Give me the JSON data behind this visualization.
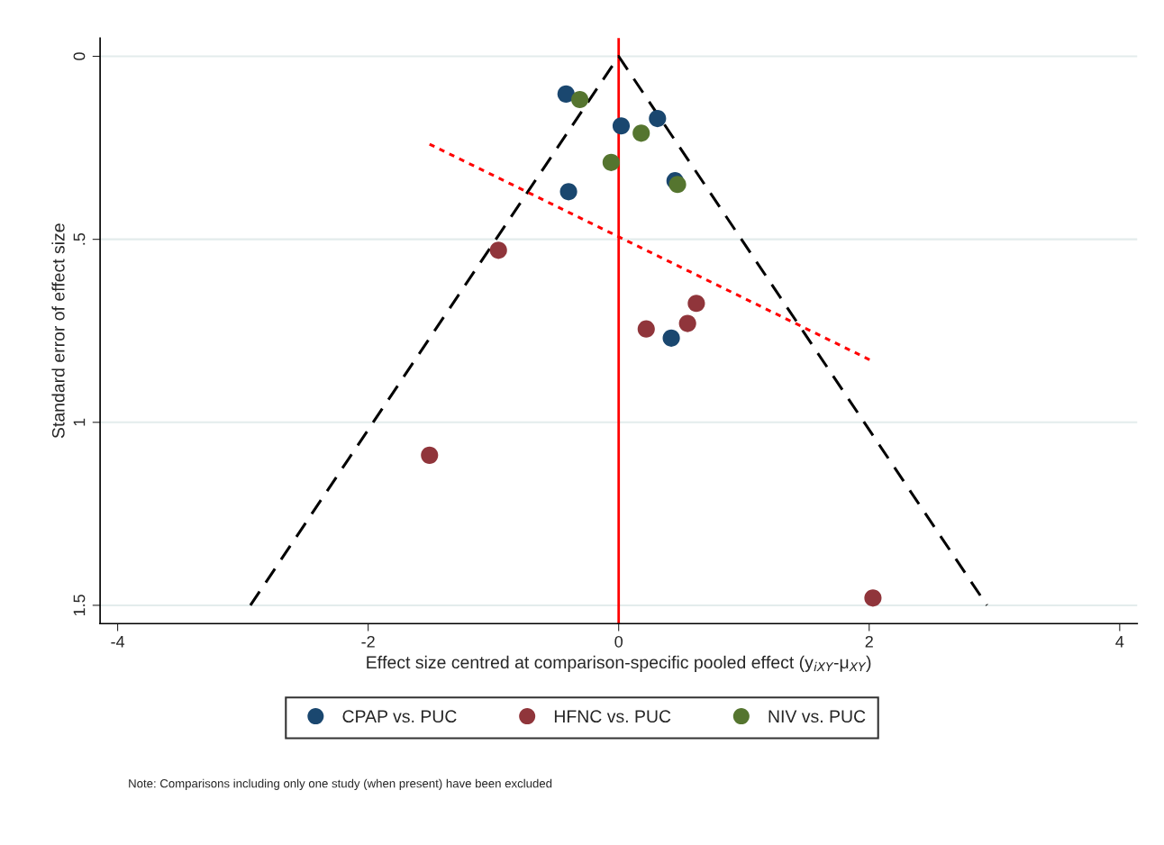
{
  "chart_data": {
    "type": "scatter",
    "xlabel": "Effect size centred at comparison-specific pooled effect (y$_{iXY}$-μ$_{XY}$)",
    "ylabel": "Standard error of effect size",
    "xlim": [
      -4.14,
      4.14
    ],
    "xticks": [
      -4,
      -2,
      0,
      2,
      4
    ],
    "ylim": [
      1.55,
      -0.05
    ],
    "yticks": [
      0,
      {
        "value": 0.5,
        "label": ".5"
      },
      1,
      1.5
    ],
    "grid": "y",
    "legend": "bottom",
    "marker": "circle",
    "series": [
      {
        "name": "CPAP vs. PUC",
        "color": "#1a476f",
        "x": [
          -0.42,
          0.02,
          0.31,
          -0.4,
          0.45,
          0.42
        ],
        "values": [
          0.103,
          0.19,
          0.17,
          0.37,
          0.34,
          0.77
        ]
      },
      {
        "name": "HFNC vs. PUC",
        "color": "#90353b",
        "x": [
          -0.96,
          0.62,
          0.22,
          0.55,
          -1.51,
          2.03
        ],
        "values": [
          0.53,
          0.675,
          0.745,
          0.73,
          1.09,
          1.48
        ]
      },
      {
        "name": "NIV vs. PUC",
        "color": "#55752f",
        "x": [
          -0.31,
          0.18,
          -0.06,
          0.47
        ],
        "values": [
          0.118,
          0.21,
          0.29,
          0.35
        ]
      },
      {
        "type": "line",
        "color": "#000000",
        "line_style": "dashed",
        "marker": "none",
        "x": [
          -2.94,
          0,
          2.94
        ],
        "values": [
          1.5,
          0,
          1.5
        ]
      },
      {
        "type": "line",
        "color": "#ff0000",
        "line_style": "dotted",
        "marker": "none",
        "x": [
          -1.51,
          2.01
        ],
        "values": [
          0.24,
          0.83
        ]
      }
    ],
    "ref_lines": [
      {
        "axis": "x",
        "value": 0,
        "color": "#ff0000",
        "line_style": "solid"
      }
    ],
    "annotations": [
      "Note: Comparisons including only one study (when present) have been excluded"
    ]
  }
}
